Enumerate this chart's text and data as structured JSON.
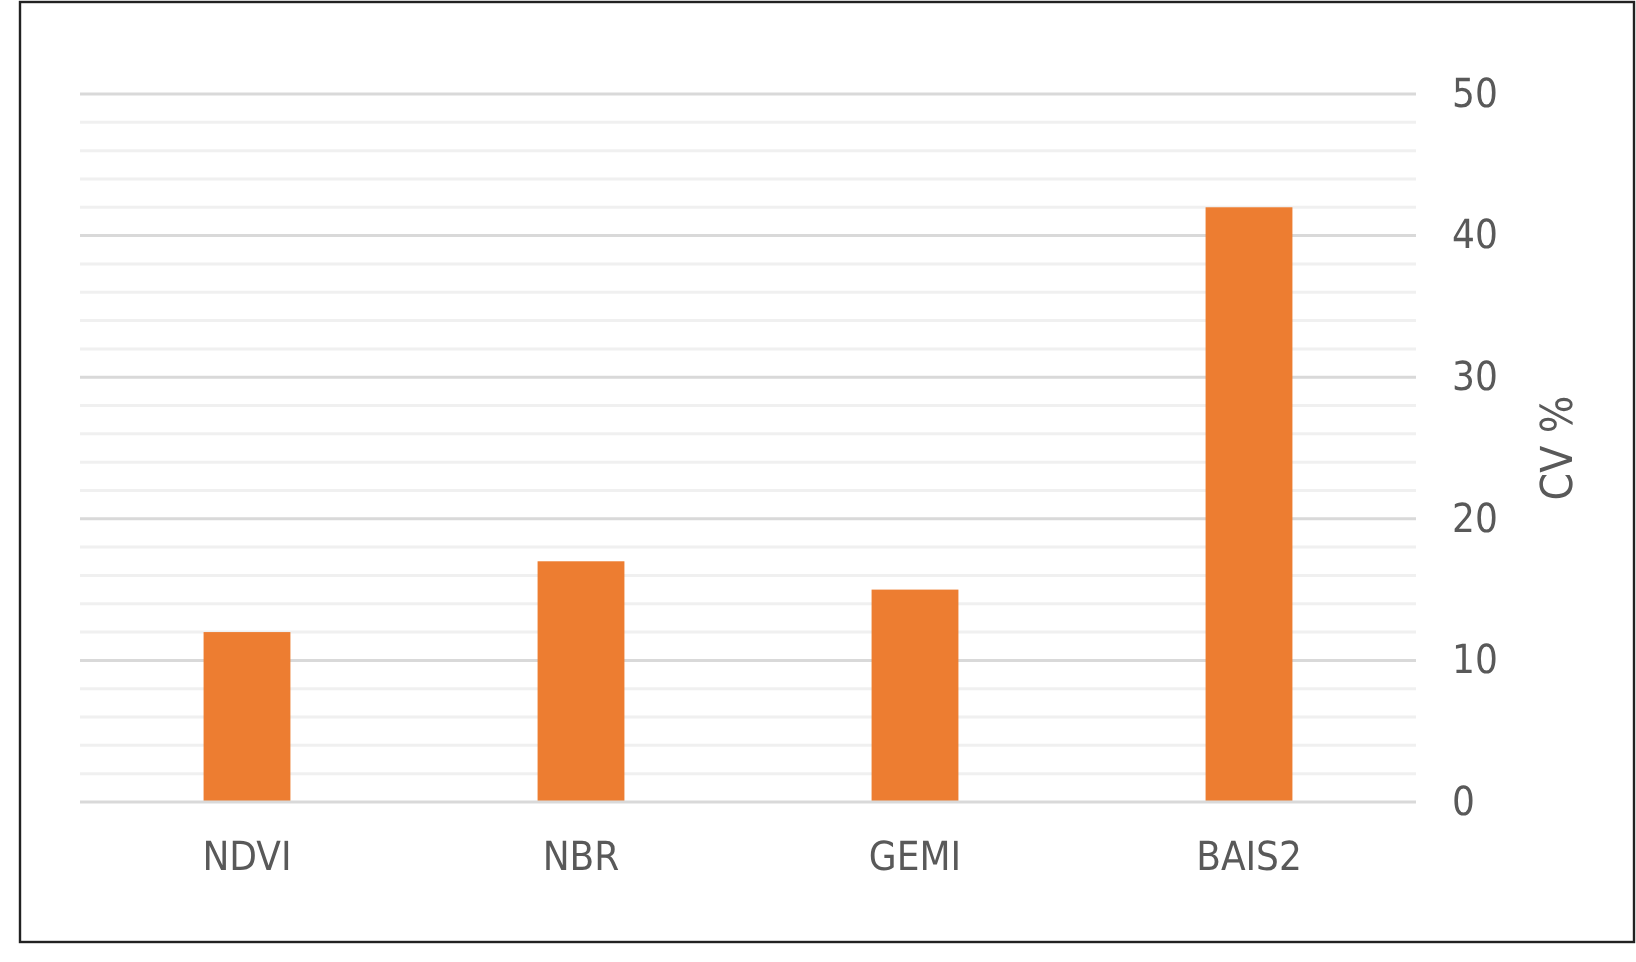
{
  "chart_data": {
    "type": "bar",
    "ylabel": "CV %",
    "categories": [
      "NDVI",
      "NBR",
      "GEMI",
      "BAIS2"
    ],
    "values": [
      12,
      17,
      15,
      42
    ],
    "color": "#ed7d31",
    "ylim": [
      0,
      50
    ],
    "yticks": [
      0,
      {
        "value": 2,
        "label": null
      },
      {
        "value": 4,
        "label": null
      },
      {
        "value": 6,
        "label": null
      },
      {
        "value": 8,
        "label": null
      },
      10,
      {
        "value": 12,
        "label": null
      },
      {
        "value": 14,
        "label": null
      },
      {
        "value": 16,
        "label": null
      },
      {
        "value": 18,
        "label": null
      },
      20,
      {
        "value": 22,
        "label": null
      },
      {
        "value": 24,
        "label": null
      },
      {
        "value": 26,
        "label": null
      },
      {
        "value": 28,
        "label": null
      },
      30,
      {
        "value": 32,
        "label": null
      },
      {
        "value": 34,
        "label": null
      },
      {
        "value": 36,
        "label": null
      },
      {
        "value": 38,
        "label": null
      },
      40,
      {
        "value": 42,
        "label": null
      },
      {
        "value": 44,
        "label": null
      },
      {
        "value": 46,
        "label": null
      },
      {
        "value": 48,
        "label": null
      },
      50
    ],
    "grid": true
  }
}
